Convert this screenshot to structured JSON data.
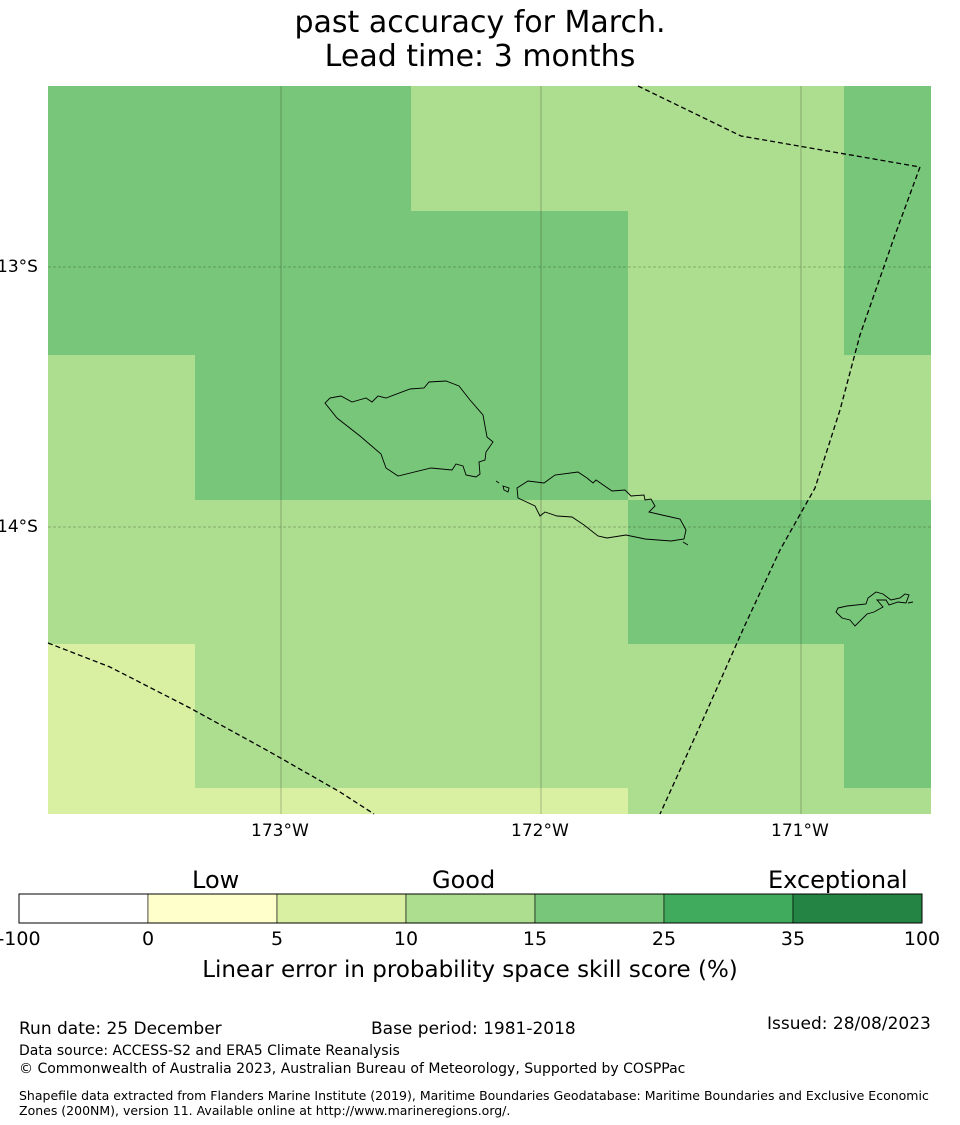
{
  "header": {
    "title_line1": "past accuracy for March.",
    "title_line2": "Lead time: 3 months"
  },
  "map": {
    "lat_labels": [
      "13°S",
      "14°S"
    ],
    "lon_labels": [
      "173°W",
      "172°W",
      "171°W"
    ],
    "skill_colors": {
      "below_0": "#ffffff",
      "0_5": "#ffffcc",
      "5_10": "#d9f0a3",
      "10_15": "#addd8e",
      "15_25": "#78c679",
      "25_35": "#41ab5d",
      "35_100": "#238443"
    }
  },
  "colorbar": {
    "category_labels": [
      "Low",
      "Good",
      "Exceptional"
    ],
    "tick_labels": [
      "-100",
      "0",
      "5",
      "10",
      "15",
      "25",
      "35",
      "100"
    ],
    "colors": [
      "#ffffff",
      "#ffffcc",
      "#d9f0a3",
      "#addd8e",
      "#78c679",
      "#41ab5d",
      "#238443"
    ],
    "axis_label": "Linear error in probability space skill score (%)"
  },
  "footer": {
    "run_date": "Run date: 25 December",
    "base_period": "Base period: 1981-2018",
    "issued": "Issued: 28/08/2023",
    "data_source": "Data source: ACCESS-S2 and ERA5 Climate Reanalysis",
    "copyright": "© Commonwealth of Australia 2023, Australian Bureau of Meteorology, Supported by COSPPac",
    "shapefile_note": "Shapefile data extracted from Flanders Marine Institute (2019), Maritime Boundaries Geodatabase: Maritime Boundaries and Exclusive Economic Zones (200NM), version 11. Available online at http://www.marineregions.org/."
  }
}
